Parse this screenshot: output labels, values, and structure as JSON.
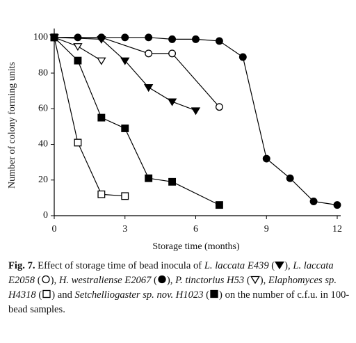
{
  "chart_data": {
    "type": "line",
    "x_label": "Storage time (months)",
    "y_label": "Number of colony forming units",
    "xlim": [
      0,
      12
    ],
    "xticks": [
      0,
      3,
      6,
      9,
      12
    ],
    "ylim": [
      0,
      105
    ],
    "yticks": [
      0,
      20,
      40,
      60,
      80,
      100
    ],
    "series": [
      {
        "name": "L. laccata E439",
        "color": "#000000",
        "marker": "triangle-down",
        "filled": true,
        "x": [
          0,
          2,
          3,
          4,
          5,
          6
        ],
        "values": [
          100,
          99,
          87,
          72,
          64,
          59
        ]
      },
      {
        "name": "L. laccata E2058",
        "color": "#000000",
        "marker": "circle",
        "filled": false,
        "x": [
          0,
          2,
          4,
          5,
          7
        ],
        "values": [
          100,
          100,
          91,
          91,
          61
        ]
      },
      {
        "name": "H. westraliense E2067",
        "color": "#000000",
        "marker": "circle",
        "filled": true,
        "x": [
          0,
          1,
          2,
          3,
          4,
          5,
          6,
          7,
          8,
          9,
          10,
          11,
          12
        ],
        "values": [
          100,
          100,
          100,
          100,
          100,
          99,
          99,
          98,
          89,
          32,
          21,
          8,
          6
        ]
      },
      {
        "name": "P. tinctorius H53",
        "color": "#000000",
        "marker": "triangle-down",
        "filled": false,
        "x": [
          0,
          1,
          2
        ],
        "values": [
          100,
          95,
          87
        ]
      },
      {
        "name": "Elaphomyces sp. H4318",
        "color": "#000000",
        "marker": "square",
        "filled": false,
        "x": [
          0,
          1,
          2,
          3
        ],
        "values": [
          100,
          41,
          12,
          11
        ]
      },
      {
        "name": "Setchelliogaster sp. nov. H1023",
        "color": "#000000",
        "marker": "square",
        "filled": true,
        "x": [
          0,
          1,
          2,
          3,
          4,
          5,
          7
        ],
        "values": [
          100,
          87,
          55,
          49,
          21,
          19,
          6
        ]
      }
    ],
    "caption": {
      "label": "Fig. 7.",
      "intro": "Effect of storage time of bead inocula of",
      "conjunction": "and",
      "outro": "on the number of c.f.u. in 100-bead samples.",
      "open": "(",
      "close": ")",
      "comma": ","
    }
  }
}
